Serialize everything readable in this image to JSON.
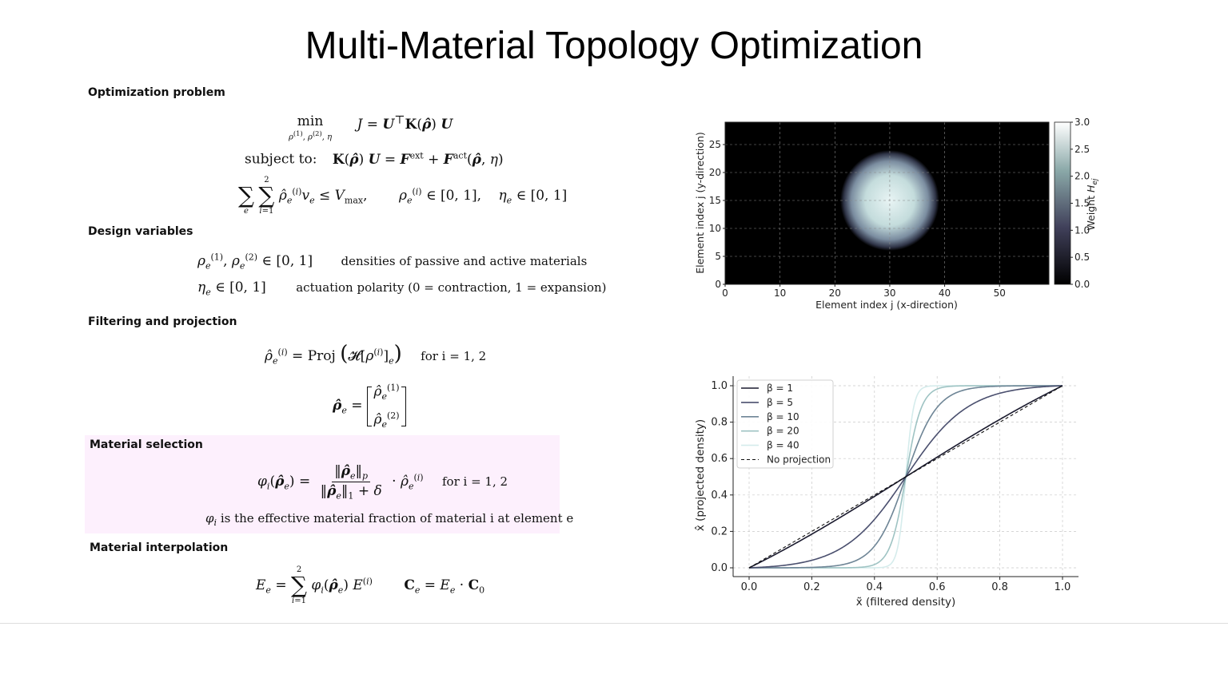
{
  "title": "Multi-Material Topology Optimization",
  "sections": {
    "optimization": "Optimization problem",
    "design": "Design variables",
    "filtering": "Filtering and projection",
    "selection": "Material selection",
    "interpolation": "Material interpolation"
  },
  "text": {
    "min": "min",
    "subject_to": "subject to:",
    "densities_desc": "densities of passive and active materials",
    "polarity_desc": "actuation polarity (0 = contraction, 1 = expansion)",
    "for_i": "for i = 1, 2",
    "fraction_desc": "is the effective material fraction of material i at element e",
    "proj": "Proj"
  },
  "chart_data": [
    {
      "type": "heatmap",
      "xlabel": "Element index j (x-direction)",
      "ylabel": "Element index j (y-direction)",
      "colorbar_label": "Weight H_ej",
      "xlim": [
        0,
        59
      ],
      "ylim": [
        0,
        29
      ],
      "x_ticks": [
        0,
        10,
        20,
        30,
        40,
        50
      ],
      "y_ticks": [
        0,
        5,
        10,
        15,
        20,
        25
      ],
      "colorbar_ticks": [
        0.0,
        0.5,
        1.0,
        1.5,
        2.0,
        2.5,
        3.0
      ],
      "value_range": [
        0.0,
        3.0
      ],
      "peak_center": [
        30,
        15
      ],
      "peak_radius": 9,
      "colormap": "bone",
      "grid": true
    },
    {
      "type": "line",
      "xlabel": "x̃ (filtered density)",
      "ylabel": "x̂ (projected density)",
      "xlim": [
        0.0,
        1.0
      ],
      "ylim": [
        0.0,
        1.0
      ],
      "x_ticks": [
        0.0,
        0.2,
        0.4,
        0.6,
        0.8,
        1.0
      ],
      "y_ticks": [
        0.0,
        0.2,
        0.4,
        0.6,
        0.8,
        1.0
      ],
      "threshold": 0.5,
      "grid": true,
      "legend_position": "top-left",
      "series": [
        {
          "name": "β = 1",
          "beta": 1,
          "color": "#1a1a2e",
          "dashed": false
        },
        {
          "name": "β = 5",
          "beta": 5,
          "color": "#4a4f6e",
          "dashed": false
        },
        {
          "name": "β = 10",
          "beta": 10,
          "color": "#6e8596",
          "dashed": false
        },
        {
          "name": "β = 20",
          "beta": 20,
          "color": "#9ec3c3",
          "dashed": false
        },
        {
          "name": "β = 40",
          "beta": 40,
          "color": "#d5ecec",
          "dashed": false
        },
        {
          "name": "No projection",
          "beta": 0,
          "color": "#111111",
          "dashed": true
        }
      ]
    }
  ]
}
